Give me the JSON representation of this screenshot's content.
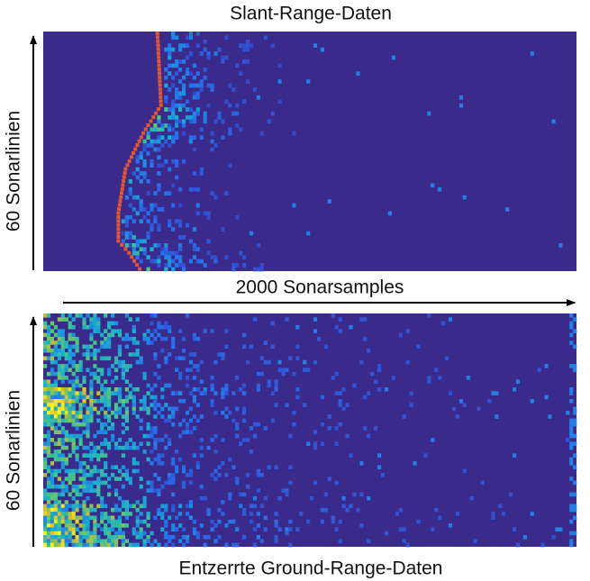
{
  "top_panel": {
    "title": "Slant-Range-Daten",
    "y_label": "60 Sonarlinien"
  },
  "x_label": "2000 Sonarsamples",
  "bottom_panel": {
    "title": "Entzerrte Ground-Range-Daten",
    "y_label": "60 Sonarlinien"
  }
}
